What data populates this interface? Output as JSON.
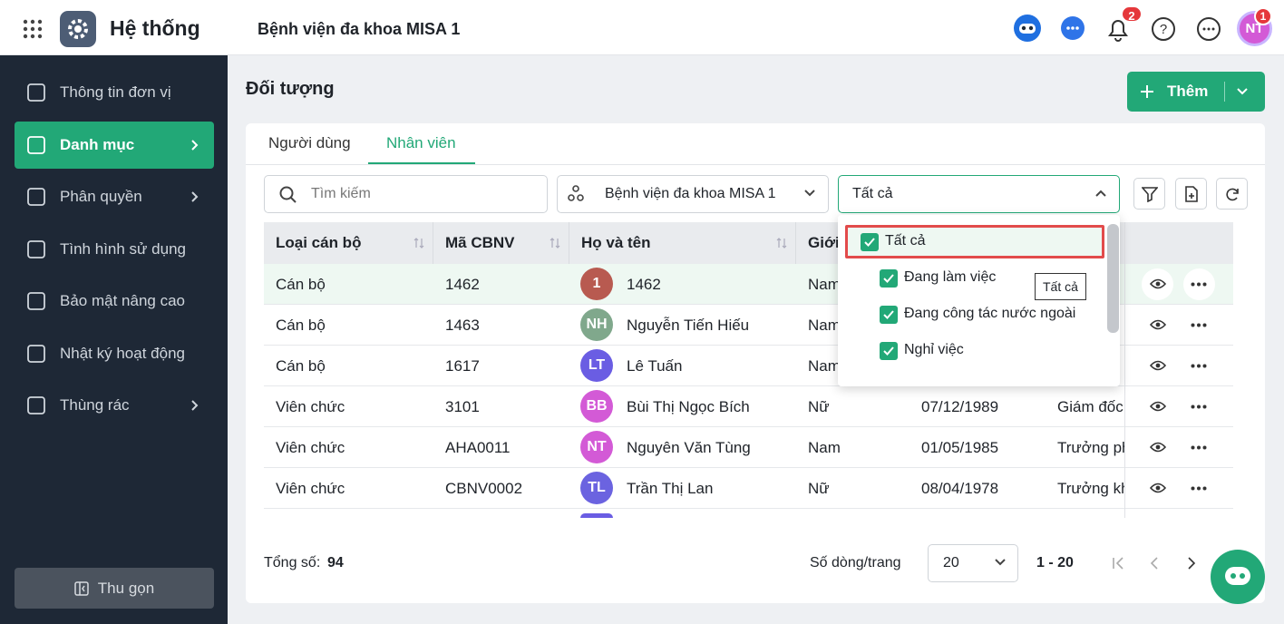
{
  "header": {
    "app_title": "Hệ thống",
    "organization": "Bệnh viện đa khoa MISA 1",
    "notification_count": "2",
    "user_initials": "NT",
    "user_badge": "1"
  },
  "sidebar": {
    "items": [
      "Thông tin đơn vị",
      "Danh mục",
      "Phân quyền",
      "Tình hình sử dụng",
      "Bảo mật nâng cao",
      "Nhật ký hoạt động",
      "Thùng rác"
    ],
    "active": 1,
    "collapse": "Thu gọn"
  },
  "page": {
    "title": "Đối tượng",
    "add_button": "Thêm"
  },
  "tabs": {
    "items": [
      "Người dùng",
      "Nhân viên"
    ],
    "active": 1
  },
  "filters": {
    "search_placeholder": "Tìm kiếm",
    "organization": "Bệnh viện đa khoa MISA 1",
    "status": "Tất cả"
  },
  "table": {
    "columns": [
      "Loại cán bộ",
      "Mã CBNV",
      "Họ và tên",
      "Giới tính"
    ],
    "rows": [
      {
        "type": "Cán bộ",
        "code": "1462",
        "avatar": "1",
        "avatar_color": "#b85a50",
        "name": "1462",
        "gender": "Nam"
      },
      {
        "type": "Cán bộ",
        "code": "1463",
        "avatar": "NH",
        "avatar_color": "#80a88c",
        "name": "Nguyễn Tiến Hiếu",
        "gender": "Nam"
      },
      {
        "type": "Cán bộ",
        "code": "1617",
        "avatar": "LT",
        "avatar_color": "#6a5de3",
        "name": "Lê Tuấn",
        "gender": "Nam"
      },
      {
        "type": "Viên chức",
        "code": "3101",
        "avatar": "BB",
        "avatar_color": "#d35ad6",
        "name": "Bùi Thị Ngọc Bích",
        "gender": "Nữ",
        "birth_date": "07/12/1989",
        "position": "Giám đốc"
      },
      {
        "type": "Viên chức",
        "code": "AHA0011",
        "avatar": "NT",
        "avatar_color": "#d35ad6",
        "name": "Nguyên Văn Tùng",
        "gender": "Nam",
        "birth_date": "01/05/1985",
        "position": "Trưởng phòng"
      },
      {
        "type": "Viên chức",
        "code": "CBNV0002",
        "avatar": "TL",
        "avatar_color": "#6b63e0",
        "name": "Trần Thị Lan",
        "gender": "Nữ",
        "birth_date": "08/04/1978",
        "position": "Trưởng khoa"
      }
    ]
  },
  "status_dropdown": {
    "options": [
      "Tất cả",
      "Đang làm việc",
      "Đang công tác nước ngoài",
      "Nghỉ việc"
    ],
    "tooltip": "Tất cả"
  },
  "footer": {
    "total_label": "Tổng số:",
    "total": "94",
    "page_size_label": "Số dòng/trang",
    "page_size": "20",
    "range": "1 - 20"
  }
}
